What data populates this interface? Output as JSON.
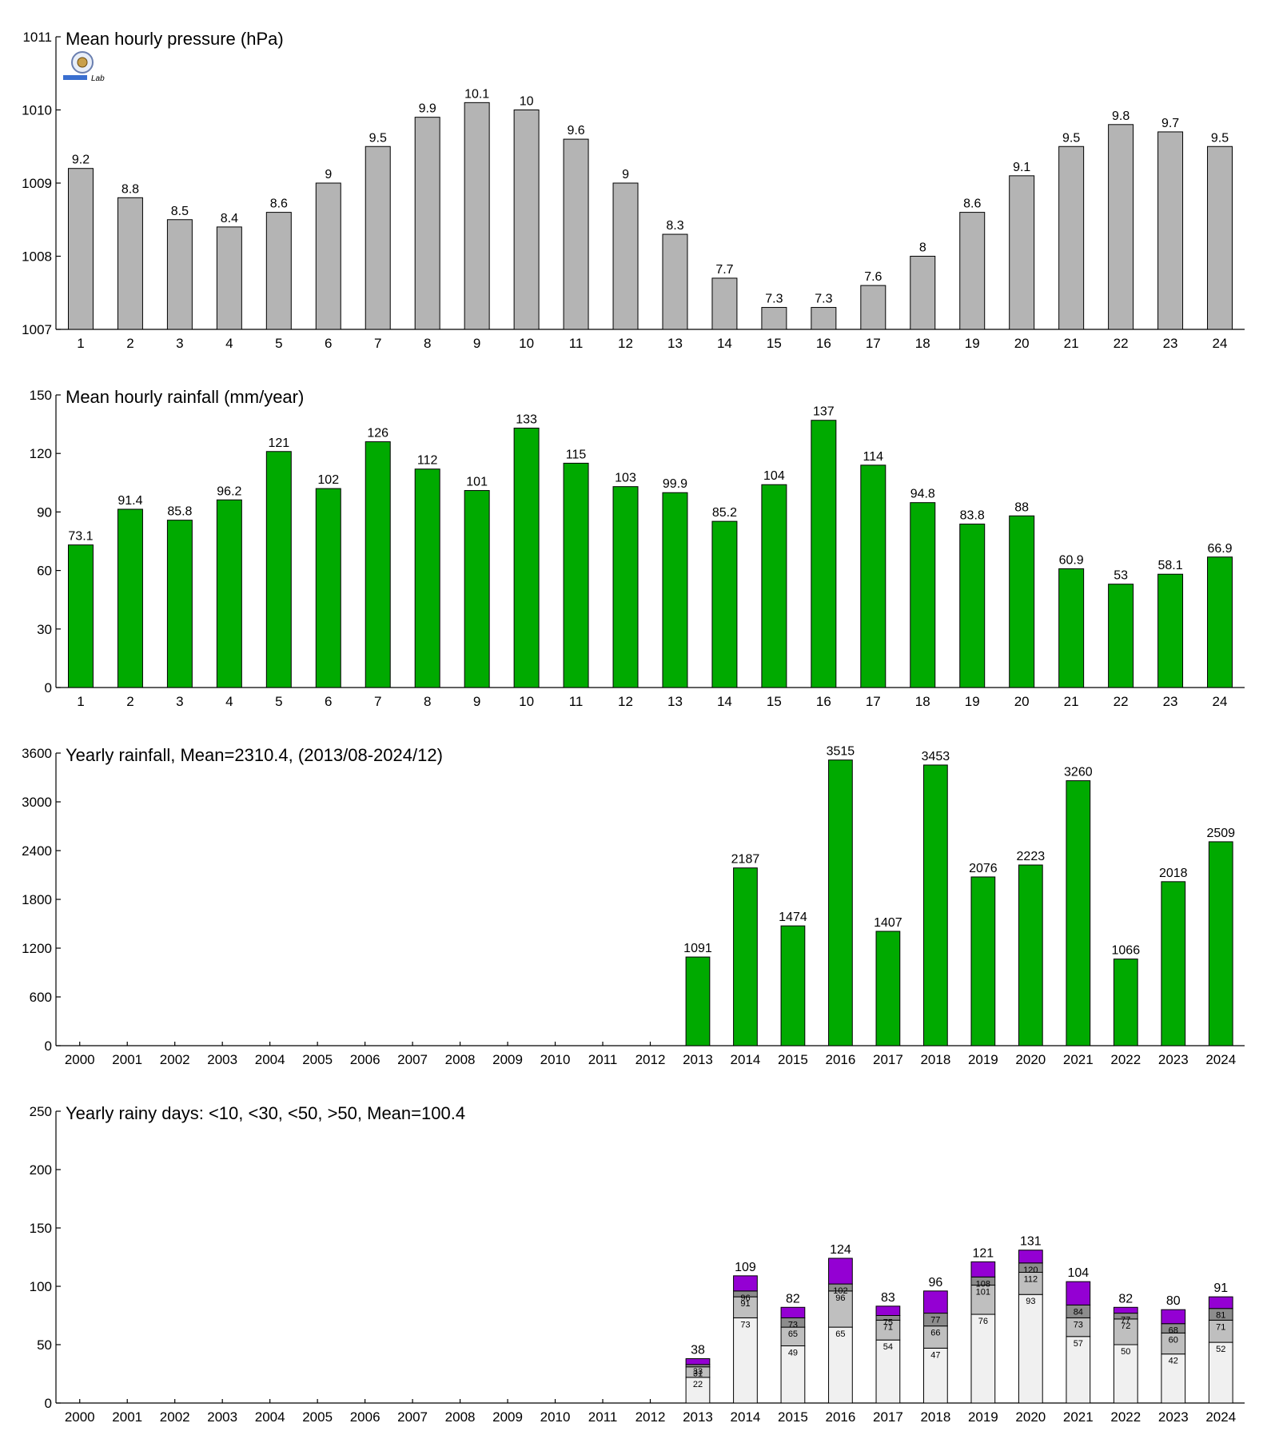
{
  "chart_data": [
    {
      "type": "bar",
      "title": "Mean hourly pressure (hPa)",
      "categories": [
        "1",
        "2",
        "3",
        "4",
        "5",
        "6",
        "7",
        "8",
        "9",
        "10",
        "11",
        "12",
        "13",
        "14",
        "15",
        "16",
        "17",
        "18",
        "19",
        "20",
        "21",
        "22",
        "23",
        "24"
      ],
      "values": [
        1009.2,
        1008.8,
        1008.5,
        1008.4,
        1008.6,
        1009.0,
        1009.5,
        1009.9,
        1010.1,
        1010.0,
        1009.6,
        1009.0,
        1008.3,
        1007.7,
        1007.3,
        1007.3,
        1007.6,
        1008.0,
        1008.6,
        1009.1,
        1009.5,
        1009.8,
        1009.7,
        1009.5
      ],
      "data_labels": [
        "9.2",
        "8.8",
        "8.5",
        "8.4",
        "8.6",
        "9",
        "9.5",
        "9.9",
        "10.1",
        "10",
        "9.6",
        "9",
        "8.3",
        "7.7",
        "7.3",
        "7.3",
        "7.6",
        "8",
        "8.6",
        "9.1",
        "9.5",
        "9.8",
        "9.7",
        "9.5"
      ],
      "ylim": [
        1007,
        1011
      ],
      "yticks": [
        "1007",
        "1008",
        "1009",
        "1010",
        "1011"
      ],
      "colors": {
        "bar": "#b4b4b4"
      },
      "logo": {
        "text": "Lab"
      }
    },
    {
      "type": "bar",
      "title": "Mean hourly rainfall (mm/year)",
      "categories": [
        "1",
        "2",
        "3",
        "4",
        "5",
        "6",
        "7",
        "8",
        "9",
        "10",
        "11",
        "12",
        "13",
        "14",
        "15",
        "16",
        "17",
        "18",
        "19",
        "20",
        "21",
        "22",
        "23",
        "24"
      ],
      "values": [
        73.1,
        91.4,
        85.8,
        96.2,
        121,
        102,
        126,
        112,
        101,
        133,
        115,
        103,
        99.9,
        85.2,
        104,
        137,
        114,
        94.8,
        83.8,
        88,
        60.9,
        53,
        58.1,
        66.9
      ],
      "data_labels": [
        "73.1",
        "91.4",
        "85.8",
        "96.2",
        "121",
        "102",
        "126",
        "112",
        "101",
        "133",
        "115",
        "103",
        "99.9",
        "85.2",
        "104",
        "137",
        "114",
        "94.8",
        "83.8",
        "88",
        "60.9",
        "53",
        "58.1",
        "66.9"
      ],
      "ylim": [
        0,
        150
      ],
      "yticks": [
        "0",
        "30",
        "60",
        "90",
        "120",
        "150"
      ],
      "colors": {
        "bar": "#00aa00"
      }
    },
    {
      "type": "bar",
      "title": "Yearly rainfall, Mean=2310.4, (2013/08-2024/12)",
      "categories": [
        "2000",
        "2001",
        "2002",
        "2003",
        "2004",
        "2005",
        "2006",
        "2007",
        "2008",
        "2009",
        "2010",
        "2011",
        "2012",
        "2013",
        "2014",
        "2015",
        "2016",
        "2017",
        "2018",
        "2019",
        "2020",
        "2021",
        "2022",
        "2023",
        "2024"
      ],
      "values": [
        null,
        null,
        null,
        null,
        null,
        null,
        null,
        null,
        null,
        null,
        null,
        null,
        null,
        1091,
        2187,
        1474,
        3515,
        1407,
        3453,
        2076,
        2223,
        3260,
        1066,
        2018,
        2509
      ],
      "data_labels": [
        "",
        "",
        "",
        "",
        "",
        "",
        "",
        "",
        "",
        "",
        "",
        "",
        "",
        "1091",
        "2187",
        "1474",
        "3515",
        "1407",
        "3453",
        "2076",
        "2223",
        "3260",
        "1066",
        "2018",
        "2509"
      ],
      "ylim": [
        0,
        3600
      ],
      "yticks": [
        "0",
        "600",
        "1200",
        "1800",
        "2400",
        "3000",
        "3600"
      ],
      "colors": {
        "bar": "#00aa00"
      }
    },
    {
      "type": "bar",
      "stacked": true,
      "title": "Yearly rainy days: <10, <30, <50, >50, Mean=100.4",
      "categories": [
        "2000",
        "2001",
        "2002",
        "2003",
        "2004",
        "2005",
        "2006",
        "2007",
        "2008",
        "2009",
        "2010",
        "2011",
        "2012",
        "2013",
        "2014",
        "2015",
        "2016",
        "2017",
        "2018",
        "2019",
        "2020",
        "2021",
        "2022",
        "2023",
        "2024"
      ],
      "cumulative": {
        "lt10": [
          null,
          null,
          null,
          null,
          null,
          null,
          null,
          null,
          null,
          null,
          null,
          null,
          null,
          22,
          73,
          49,
          65,
          54,
          47,
          76,
          93,
          57,
          50,
          42,
          52
        ],
        "lt30": [
          null,
          null,
          null,
          null,
          null,
          null,
          null,
          null,
          null,
          null,
          null,
          null,
          null,
          31,
          91,
          65,
          96,
          71,
          66,
          101,
          112,
          73,
          72,
          60,
          71
        ],
        "lt50": [
          null,
          null,
          null,
          null,
          null,
          null,
          null,
          null,
          null,
          null,
          null,
          null,
          null,
          33,
          96,
          73,
          102,
          75,
          77,
          108,
          120,
          84,
          77,
          68,
          81
        ],
        "total": [
          null,
          null,
          null,
          null,
          null,
          null,
          null,
          null,
          null,
          null,
          null,
          null,
          null,
          38,
          109,
          82,
          124,
          83,
          96,
          121,
          131,
          104,
          82,
          80,
          91
        ]
      },
      "ylim": [
        0,
        250
      ],
      "yticks": [
        "0",
        "50",
        "100",
        "150",
        "200",
        "250"
      ],
      "colors": {
        "lt10": "#f0f0f0",
        "lt30": "#bfbfbf",
        "lt50": "#8c8c8c",
        "gt50": "#9400d3"
      }
    }
  ]
}
